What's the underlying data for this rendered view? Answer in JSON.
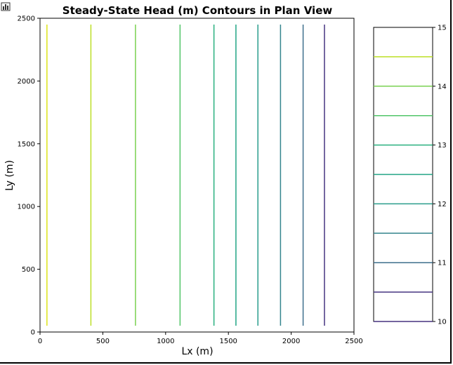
{
  "toolbar": {
    "chart_icon": "bar-chart-icon"
  },
  "chart_data": {
    "type": "contour",
    "title": "Steady-State Head (m) Contours in Plan View",
    "xlabel": "Lx (m)",
    "ylabel": "Ly (m)",
    "xlim": [
      0,
      2500
    ],
    "ylim": [
      0,
      2500
    ],
    "xticks": [
      0,
      500,
      1000,
      1500,
      2000,
      2500
    ],
    "yticks": [
      0,
      500,
      1000,
      1500,
      2000,
      2500
    ],
    "grid": false,
    "y_extent": [
      50,
      2450
    ],
    "contours": [
      {
        "level": 14.5,
        "x": 55,
        "color": "#dde318"
      },
      {
        "level": 14.0,
        "x": 405,
        "color": "#bddf26"
      },
      {
        "level": 13.5,
        "x": 760,
        "color": "#7ad151"
      },
      {
        "level": 13.0,
        "x": 1115,
        "color": "#52c569"
      },
      {
        "level": 12.5,
        "x": 1385,
        "color": "#2ab07f"
      },
      {
        "level": 12.0,
        "x": 1560,
        "color": "#21a585"
      },
      {
        "level": 11.5,
        "x": 1735,
        "color": "#2a9d8c"
      },
      {
        "level": 11.0,
        "x": 1915,
        "color": "#35868e"
      },
      {
        "level": 10.5,
        "x": 2095,
        "color": "#3e6f8c"
      },
      {
        "level": 10.0,
        "x": 2265,
        "color": "#463480"
      }
    ],
    "colorbar": {
      "range": [
        10,
        15
      ],
      "ticks": [
        10,
        11,
        12,
        13,
        14,
        15
      ],
      "levels": [
        {
          "level": 14.5,
          "color": "#bddf26"
        },
        {
          "level": 14.0,
          "color": "#7ad151"
        },
        {
          "level": 13.5,
          "color": "#52c569"
        },
        {
          "level": 13.0,
          "color": "#2ab07f"
        },
        {
          "level": 12.5,
          "color": "#21a585"
        },
        {
          "level": 12.0,
          "color": "#2a9d8c"
        },
        {
          "level": 11.5,
          "color": "#35868e"
        },
        {
          "level": 11.0,
          "color": "#3e6f8c"
        },
        {
          "level": 10.5,
          "color": "#463480"
        },
        {
          "level": 10.0,
          "color": "#46327e"
        }
      ]
    }
  }
}
